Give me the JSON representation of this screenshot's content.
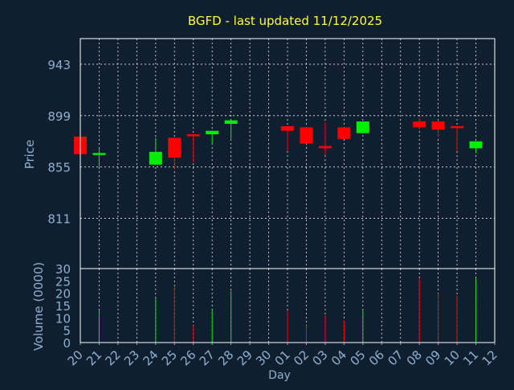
{
  "chart_data": {
    "type": "candlestick",
    "title": "BGFD - last updated 11/12/2025",
    "colors": {
      "background": "#0f1f30",
      "axis_text": "#8fb0d0",
      "title": "#ffff33",
      "grid": "#ffffff",
      "up": "#00ee00",
      "down": "#ff0000"
    },
    "price_panel": {
      "ylabel": "Price",
      "ylim": [
        768,
        965
      ],
      "yticks": [
        811,
        855,
        899,
        943
      ]
    },
    "volume_panel": {
      "ylabel": "Volume (0000)",
      "ylim": [
        0,
        30
      ],
      "yticks": [
        0,
        5,
        10,
        15,
        20,
        25,
        30
      ]
    },
    "xlabel": "Day",
    "x_ticks": [
      "20",
      "21",
      "22",
      "23",
      "24",
      "25",
      "26",
      "27",
      "28",
      "29",
      "30",
      "01",
      "02",
      "03",
      "04",
      "05",
      "06",
      "07",
      "08",
      "09",
      "10",
      "11",
      "12"
    ],
    "candles": [
      {
        "day": "20",
        "open": 881,
        "close": 866,
        "high": 881,
        "low": 866,
        "volume": 0
      },
      {
        "day": "21",
        "open": 866,
        "close": 867,
        "high": 871,
        "low": 855,
        "volume": 13
      },
      {
        "day": "24",
        "open": 857,
        "close": 868,
        "high": 880,
        "low": 857,
        "volume": 18
      },
      {
        "day": "25",
        "open": 880,
        "close": 863,
        "high": 880,
        "low": 853,
        "volume": 23
      },
      {
        "day": "26",
        "open": 883,
        "close": 882,
        "high": 884,
        "low": 859,
        "volume": 7
      },
      {
        "day": "27",
        "open": 883,
        "close": 886,
        "high": 886,
        "low": 874,
        "volume": 13
      },
      {
        "day": "28",
        "open": 892,
        "close": 895,
        "high": 895,
        "low": 878,
        "volume": 21
      },
      {
        "day": "01",
        "open": 890,
        "close": 886,
        "high": 890,
        "low": 869,
        "volume": 13
      },
      {
        "day": "02",
        "open": 889,
        "close": 875,
        "high": 889,
        "low": 875,
        "volume": 7
      },
      {
        "day": "03",
        "open": 873,
        "close": 871,
        "high": 893,
        "low": 865,
        "volume": 11
      },
      {
        "day": "04",
        "open": 889,
        "close": 879,
        "high": 889,
        "low": 879,
        "volume": 9
      },
      {
        "day": "05",
        "open": 884,
        "close": 894,
        "high": 894,
        "low": 884,
        "volume": 13
      },
      {
        "day": "08",
        "open": 894,
        "close": 889,
        "high": 897,
        "low": 887,
        "volume": 26
      },
      {
        "day": "09",
        "open": 894,
        "close": 887,
        "high": 895,
        "low": 881,
        "volume": 20
      },
      {
        "day": "10",
        "open": 890,
        "close": 889,
        "high": 890,
        "low": 869,
        "volume": 19
      },
      {
        "day": "11",
        "open": 871,
        "close": 877,
        "high": 877,
        "low": 867,
        "volume": 26
      }
    ]
  }
}
